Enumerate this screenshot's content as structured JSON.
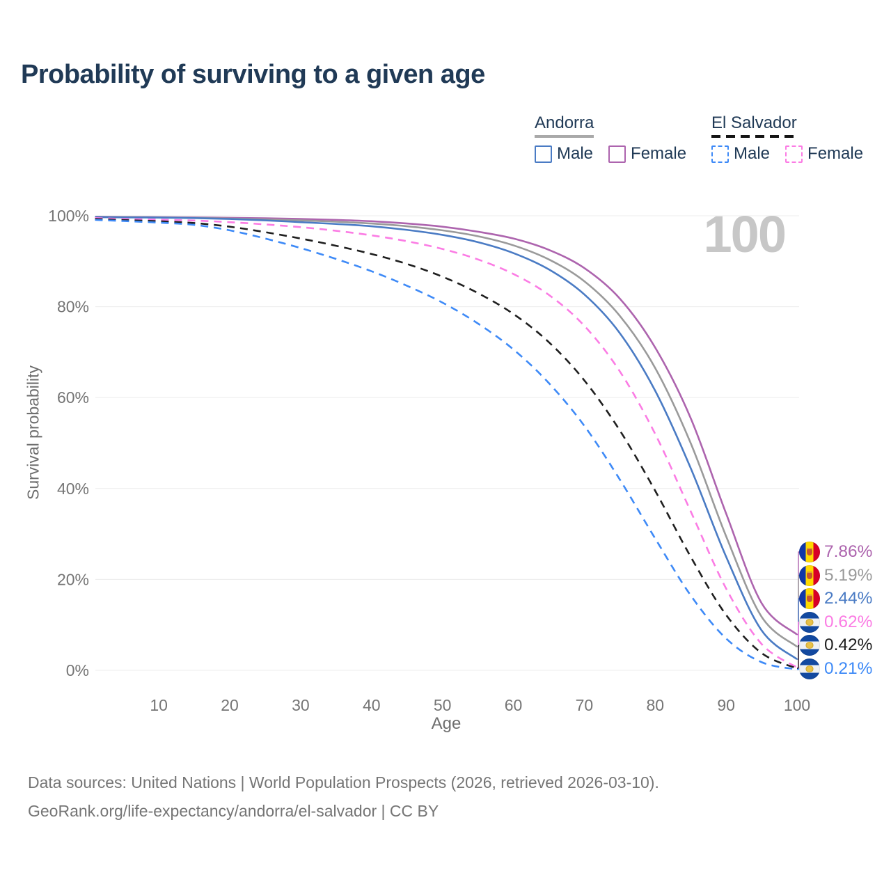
{
  "title": "Probability of surviving to a given age",
  "hover_age_label": "100",
  "legend": {
    "groups": [
      {
        "country": "Andorra",
        "line_style": "solid",
        "line_color": "#9a9a9a",
        "items": [
          {
            "label": "Male",
            "color": "#4a7bc4"
          },
          {
            "label": "Female",
            "color": "#ad64ae"
          }
        ]
      },
      {
        "country": "El Salvador",
        "line_style": "dashed",
        "line_color": "#1f1f1f",
        "items": [
          {
            "label": "Male",
            "color": "#3e8af7"
          },
          {
            "label": "Female",
            "color": "#fb7ce4"
          }
        ]
      }
    ]
  },
  "chart_data": {
    "type": "line",
    "title": "Probability of surviving to a given age",
    "xlabel": "Age",
    "ylabel": "Survival probability",
    "xlim": [
      0,
      100
    ],
    "ylim": [
      0,
      100
    ],
    "grid": "horizontal",
    "legend_position": "top-right",
    "x_ticks": [
      10,
      20,
      30,
      40,
      50,
      60,
      70,
      80,
      90,
      100
    ],
    "y_ticks": [
      {
        "label": "100%",
        "value": 100
      },
      {
        "label": "80%",
        "value": 80
      },
      {
        "label": "60%",
        "value": 60
      },
      {
        "label": "40%",
        "value": 40
      },
      {
        "label": "20%",
        "value": 20
      },
      {
        "label": "0%",
        "value": 0
      }
    ],
    "series": [
      {
        "name": "Andorra — Female",
        "country": "Andorra",
        "sex": "Female",
        "style": "solid",
        "color": "#ad64ae",
        "flag": "andorra",
        "end_value": 7.86,
        "end_label": "7.86%",
        "points": [
          [
            1,
            99.8
          ],
          [
            5,
            99.75
          ],
          [
            10,
            99.7
          ],
          [
            15,
            99.65
          ],
          [
            20,
            99.55
          ],
          [
            25,
            99.45
          ],
          [
            30,
            99.3
          ],
          [
            35,
            99.1
          ],
          [
            40,
            98.8
          ],
          [
            45,
            98.3
          ],
          [
            50,
            97.6
          ],
          [
            55,
            96.5
          ],
          [
            60,
            95.0
          ],
          [
            65,
            92.5
          ],
          [
            70,
            88.5
          ],
          [
            75,
            81.8
          ],
          [
            80,
            71.0
          ],
          [
            85,
            55.5
          ],
          [
            90,
            34.5
          ],
          [
            95,
            14.8
          ],
          [
            100,
            7.86
          ]
        ]
      },
      {
        "name": "Andorra — Both sexes",
        "country": "Andorra",
        "sex": "Both sexes",
        "style": "solid",
        "color": "#9a9a9a",
        "flag": "andorra",
        "end_value": 5.19,
        "end_label": "5.19%",
        "points": [
          [
            1,
            99.75
          ],
          [
            5,
            99.7
          ],
          [
            10,
            99.65
          ],
          [
            15,
            99.55
          ],
          [
            20,
            99.4
          ],
          [
            25,
            99.2
          ],
          [
            30,
            99.0
          ],
          [
            35,
            98.7
          ],
          [
            40,
            98.3
          ],
          [
            45,
            97.7
          ],
          [
            50,
            96.8
          ],
          [
            55,
            95.5
          ],
          [
            60,
            93.5
          ],
          [
            65,
            90.4
          ],
          [
            70,
            85.6
          ],
          [
            75,
            78.0
          ],
          [
            80,
            66.5
          ],
          [
            85,
            50.0
          ],
          [
            90,
            29.5
          ],
          [
            95,
            11.8
          ],
          [
            100,
            5.19
          ]
        ]
      },
      {
        "name": "Andorra — Male",
        "country": "Andorra",
        "sex": "Male",
        "style": "solid",
        "color": "#4a7bc4",
        "flag": "andorra",
        "end_value": 2.44,
        "end_label": "2.44%",
        "points": [
          [
            1,
            99.7
          ],
          [
            5,
            99.65
          ],
          [
            10,
            99.6
          ],
          [
            15,
            99.5
          ],
          [
            20,
            99.3
          ],
          [
            25,
            99.0
          ],
          [
            30,
            98.6
          ],
          [
            35,
            98.2
          ],
          [
            40,
            97.7
          ],
          [
            45,
            96.9
          ],
          [
            50,
            95.8
          ],
          [
            55,
            94.2
          ],
          [
            60,
            91.8
          ],
          [
            65,
            88.2
          ],
          [
            70,
            82.7
          ],
          [
            75,
            74.2
          ],
          [
            80,
            61.5
          ],
          [
            85,
            44.5
          ],
          [
            90,
            25.0
          ],
          [
            95,
            8.8
          ],
          [
            100,
            2.44
          ]
        ]
      },
      {
        "name": "El Salvador — Female",
        "country": "El Salvador",
        "sex": "Female",
        "style": "dashed",
        "color": "#fb7ce4",
        "flag": "el-salvador",
        "end_value": 0.62,
        "end_label": "0.62%",
        "points": [
          [
            1,
            99.5
          ],
          [
            5,
            99.3
          ],
          [
            10,
            99.15
          ],
          [
            15,
            98.95
          ],
          [
            20,
            98.6
          ],
          [
            25,
            98.1
          ],
          [
            30,
            97.5
          ],
          [
            35,
            96.7
          ],
          [
            40,
            95.7
          ],
          [
            45,
            94.4
          ],
          [
            50,
            92.7
          ],
          [
            55,
            90.4
          ],
          [
            60,
            87.2
          ],
          [
            65,
            82.6
          ],
          [
            70,
            75.8
          ],
          [
            75,
            65.8
          ],
          [
            80,
            52.0
          ],
          [
            85,
            35.0
          ],
          [
            90,
            18.0
          ],
          [
            95,
            5.8
          ],
          [
            100,
            0.62
          ]
        ]
      },
      {
        "name": "El Salvador — Both sexes",
        "country": "El Salvador",
        "sex": "Both sexes",
        "style": "dashed",
        "color": "#1f1f1f",
        "flag": "el-salvador",
        "end_value": 0.42,
        "end_label": "0.42%",
        "points": [
          [
            1,
            99.3
          ],
          [
            5,
            99.05
          ],
          [
            10,
            98.8
          ],
          [
            15,
            98.4
          ],
          [
            20,
            97.6
          ],
          [
            25,
            96.4
          ],
          [
            30,
            95.0
          ],
          [
            35,
            93.4
          ],
          [
            40,
            91.6
          ],
          [
            45,
            89.4
          ],
          [
            50,
            86.6
          ],
          [
            55,
            83.0
          ],
          [
            60,
            78.4
          ],
          [
            65,
            72.2
          ],
          [
            70,
            63.8
          ],
          [
            75,
            52.8
          ],
          [
            80,
            39.5
          ],
          [
            85,
            25.0
          ],
          [
            90,
            12.2
          ],
          [
            95,
            3.8
          ],
          [
            100,
            0.42
          ]
        ]
      },
      {
        "name": "El Salvador — Male",
        "country": "El Salvador",
        "sex": "Male",
        "style": "dashed",
        "color": "#3e8af7",
        "flag": "el-salvador",
        "end_value": 0.21,
        "end_label": "0.21%",
        "points": [
          [
            1,
            99.1
          ],
          [
            5,
            98.85
          ],
          [
            10,
            98.5
          ],
          [
            15,
            98.0
          ],
          [
            20,
            96.8
          ],
          [
            25,
            95.0
          ],
          [
            30,
            92.9
          ],
          [
            35,
            90.5
          ],
          [
            40,
            87.8
          ],
          [
            45,
            84.6
          ],
          [
            50,
            80.9
          ],
          [
            55,
            76.3
          ],
          [
            60,
            70.6
          ],
          [
            65,
            63.2
          ],
          [
            70,
            53.8
          ],
          [
            75,
            42.0
          ],
          [
            80,
            29.0
          ],
          [
            85,
            16.5
          ],
          [
            90,
            7.0
          ],
          [
            95,
            1.8
          ],
          [
            100,
            0.21
          ]
        ]
      }
    ]
  },
  "footer": {
    "line1": "Data sources: United Nations | World Population Prospects (2026, retrieved 2026-03-10).",
    "line2": "GeoRank.org/life-expectancy/andorra/el-salvador | CC BY"
  }
}
